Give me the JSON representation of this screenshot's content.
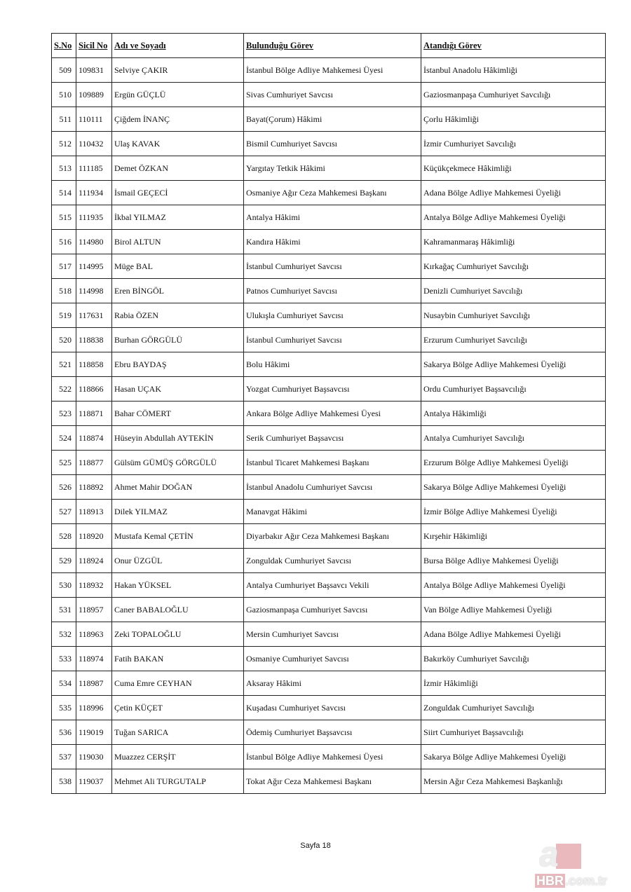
{
  "table": {
    "headers": [
      "S.No",
      "Sicil No",
      "Adı ve Soyadı",
      "Bulunduğu Görev",
      "Atandığı Görev"
    ],
    "rows": [
      [
        "509",
        "109831",
        "Selviye ÇAKIR",
        "İstanbul Bölge Adliye Mahkemesi Üyesi",
        "İstanbul Anadolu Hâkimliği"
      ],
      [
        "510",
        "109889",
        "Ergün GÜÇLÜ",
        "Sivas Cumhuriyet Savcısı",
        "Gaziosmanpaşa Cumhuriyet Savcılığı"
      ],
      [
        "511",
        "110111",
        "Çiğdem İNANÇ",
        "Bayat(Çorum) Hâkimi",
        "Çorlu Hâkimliği"
      ],
      [
        "512",
        "110432",
        "Ulaş KAVAK",
        "Bismil Cumhuriyet Savcısı",
        "İzmir Cumhuriyet Savcılığı"
      ],
      [
        "513",
        "111185",
        "Demet ÖZKAN",
        "Yargıtay Tetkik Hâkimi",
        "Küçükçekmece Hâkimliği"
      ],
      [
        "514",
        "111934",
        "İsmail GEÇECİ",
        "Osmaniye Ağır Ceza Mahkemesi Başkanı",
        "Adana Bölge Adliye Mahkemesi Üyeliği"
      ],
      [
        "515",
        "111935",
        "İkbal YILMAZ",
        "Antalya Hâkimi",
        "Antalya Bölge Adliye Mahkemesi Üyeliği"
      ],
      [
        "516",
        "114980",
        "Birol ALTUN",
        "Kandıra Hâkimi",
        "Kahramanmaraş Hâkimliği"
      ],
      [
        "517",
        "114995",
        "Müge BAL",
        "İstanbul Cumhuriyet Savcısı",
        "Kırkağaç Cumhuriyet Savcılığı"
      ],
      [
        "518",
        "114998",
        "Eren BİNGÖL",
        "Patnos Cumhuriyet Savcısı",
        "Denizli Cumhuriyet Savcılığı"
      ],
      [
        "519",
        "117631",
        "Rabia ÖZEN",
        "Ulukışla Cumhuriyet Savcısı",
        "Nusaybin Cumhuriyet Savcılığı"
      ],
      [
        "520",
        "118838",
        "Burhan GÖRGÜLÜ",
        "İstanbul Cumhuriyet Savcısı",
        "Erzurum Cumhuriyet Savcılığı"
      ],
      [
        "521",
        "118858",
        "Ebru BAYDAŞ",
        "Bolu Hâkimi",
        "Sakarya Bölge Adliye Mahkemesi Üyeliği"
      ],
      [
        "522",
        "118866",
        "Hasan UÇAK",
        "Yozgat Cumhuriyet Başsavcısı",
        "Ordu Cumhuriyet Başsavcılığı"
      ],
      [
        "523",
        "118871",
        "Bahar CÖMERT",
        "Ankara Bölge Adliye Mahkemesi Üyesi",
        "Antalya Hâkimliği"
      ],
      [
        "524",
        "118874",
        "Hüseyin Abdullah AYTEKİN",
        "Serik Cumhuriyet Başsavcısı",
        "Antalya Cumhuriyet Savcılığı"
      ],
      [
        "525",
        "118877",
        "Gülsüm GÜMÜŞ GÖRGÜLÜ",
        "İstanbul Ticaret Mahkemesi Başkanı",
        "Erzurum Bölge Adliye Mahkemesi Üyeliği"
      ],
      [
        "526",
        "118892",
        "Ahmet Mahir DOĞAN",
        "İstanbul Anadolu Cumhuriyet Savcısı",
        "Sakarya Bölge Adliye Mahkemesi Üyeliği"
      ],
      [
        "527",
        "118913",
        "Dilek YILMAZ",
        "Manavgat Hâkimi",
        "İzmir Bölge Adliye Mahkemesi Üyeliği"
      ],
      [
        "528",
        "118920",
        "Mustafa Kemal ÇETİN",
        "Diyarbakır Ağır Ceza Mahkemesi Başkanı",
        "Kırşehir Hâkimliği"
      ],
      [
        "529",
        "118924",
        "Onur ÜZGÜL",
        "Zonguldak Cumhuriyet Savcısı",
        "Bursa Bölge Adliye Mahkemesi Üyeliği"
      ],
      [
        "530",
        "118932",
        "Hakan YÜKSEL",
        "Antalya Cumhuriyet Başsavcı Vekili",
        "Antalya Bölge Adliye Mahkemesi Üyeliği"
      ],
      [
        "531",
        "118957",
        "Caner BABALOĞLU",
        "Gaziosmanpaşa Cumhuriyet Savcısı",
        "Van Bölge Adliye Mahkemesi Üyeliği"
      ],
      [
        "532",
        "118963",
        "Zeki TOPALOĞLU",
        "Mersin Cumhuriyet Savcısı",
        "Adana Bölge Adliye Mahkemesi Üyeliği"
      ],
      [
        "533",
        "118974",
        "Fatih BAKAN",
        "Osmaniye Cumhuriyet Savcısı",
        "Bakırköy Cumhuriyet Savcılığı"
      ],
      [
        "534",
        "118987",
        "Cuma Emre CEYHAN",
        "Aksaray Hâkimi",
        "İzmir Hâkimliği"
      ],
      [
        "535",
        "118996",
        "Çetin KÜÇET",
        "Kuşadası Cumhuriyet Savcısı",
        "Zonguldak Cumhuriyet Savcılığı"
      ],
      [
        "536",
        "119019",
        "Tuğan SARICA",
        "Ödemiş Cumhuriyet Başsavcısı",
        "Siirt Cumhuriyet Başsavcılığı"
      ],
      [
        "537",
        "119030",
        "Muazzez CERŞİT",
        "İstanbul Bölge Adliye Mahkemesi Üyesi",
        "Sakarya Bölge Adliye Mahkemesi Üyeliği"
      ],
      [
        "538",
        "119037",
        "Mehmet Ali TURGUTALP",
        "Tokat Ağır Ceza Mahkemesi Başkanı",
        "Mersin Ağır Ceza Mahkemesi Başkanlığı"
      ]
    ]
  },
  "footer": {
    "page_label": "Sayfa 18"
  },
  "watermark": {
    "text": "a HBR.com.tr",
    "accent_color": "#e9b9bd"
  }
}
